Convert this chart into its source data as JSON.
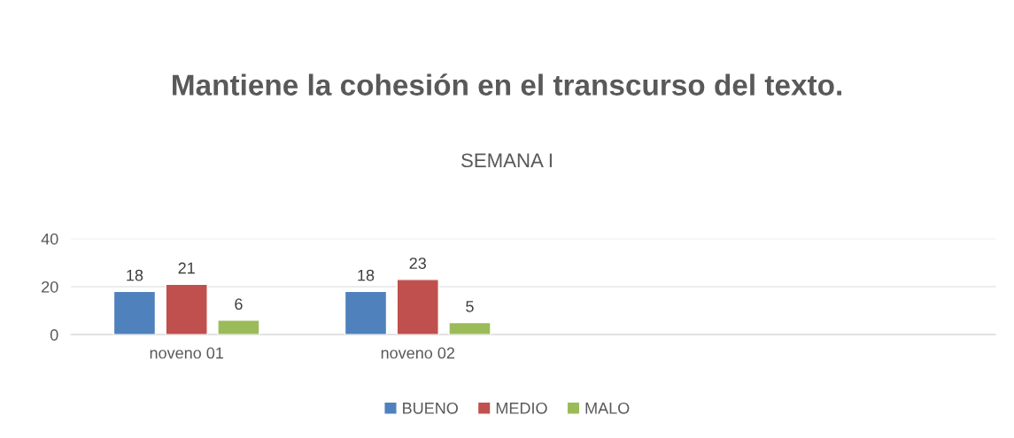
{
  "chart_data": {
    "type": "bar",
    "title": "Mantiene la cohesión en el transcurso del texto.",
    "subtitle": "SEMANA I",
    "categories": [
      "noveno 01",
      "noveno 02",
      null,
      null
    ],
    "series": [
      {
        "name": "BUENO",
        "color": "#4f81bd",
        "values": [
          18,
          18,
          null,
          null
        ]
      },
      {
        "name": "MEDIO",
        "color": "#c0504d",
        "values": [
          21,
          23,
          null,
          null
        ]
      },
      {
        "name": "MALO",
        "color": "#9bbb59",
        "values": [
          6,
          5,
          null,
          null
        ]
      }
    ],
    "ylim": [
      0,
      40
    ],
    "yticks": [
      0,
      20,
      40
    ],
    "grid": "y",
    "legend": "bottom",
    "data_labels": true
  }
}
